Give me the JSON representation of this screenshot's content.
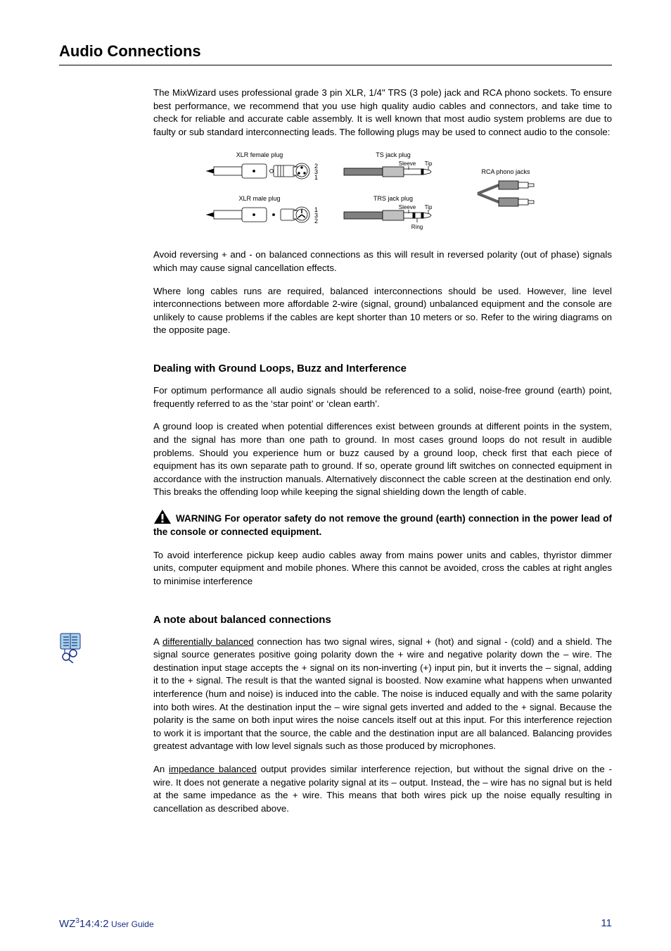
{
  "title": "Audio Connections",
  "intro": "The MixWizard uses professional grade 3 pin XLR, 1/4\" TRS (3 pole) jack and RCA phono sockets.  To ensure best performance, we recommend that you use high quality audio cables and connectors, and take time to check for reliable and accurate cable assembly.  It is well known that most audio system problems are due to faulty or sub standard interconnecting leads.  The following plugs may be used to connect audio to the console:",
  "diagram": {
    "labels": {
      "xlr_f": "XLR female plug",
      "xlr_m": "XLR male plug",
      "ts": "TS jack plug",
      "trs": "TRS jack plug",
      "rca": "RCA phono jacks",
      "sleeve": "Sleeve",
      "tip": "Tip",
      "ring": "Ring"
    },
    "colors": {
      "stroke": "#000000",
      "fill_cable": "#808080",
      "fill_body": "#b0b0b0",
      "fill_plug": "#d0d0d0",
      "text": "#000000"
    }
  },
  "para_avoid": "Avoid reversing + and - on balanced connections as this will result in reversed polarity (out of phase) signals which may cause signal cancellation effects.",
  "para_long": "Where long cables runs are required, balanced interconnections should be used.  However, line level interconnections between more affordable 2-wire (signal, ground) unbalanced equipment and the console are unlikely to cause problems if the cables are kept shorter than 10 meters or so.  Refer to the wiring diagrams on the opposite page.",
  "sub1": "Dealing with Ground Loops, Buzz and Interference",
  "para_opt": "For optimum performance all audio signals should be referenced to a solid, noise-free ground (earth) point, frequently referred to as the ‘star point’ or ‘clean earth’.",
  "para_loop": "A ground loop is created when potential differences exist between grounds at different points in the system, and the signal has more than one path to ground.  In most cases ground loops do not result in audible problems.  Should you experience hum or buzz caused by a ground loop, check first that each piece of equipment has its own separate path to ground.  If so, operate ground lift switches on connected equipment in accordance with the instruction manuals.  Alternatively disconnect the cable screen at the destination end only.  This breaks the offending loop while keeping the signal shielding down the length of cable.",
  "warning_label": "WARNING",
  "warning_text": "   For operator safety do not remove the ground (earth) connection in the power lead of the console or connected equipment.",
  "para_interf": "To avoid interference pickup keep audio cables away from mains power units and cables, thyristor dimmer units, computer equipment and mobile phones.  Where this cannot be avoided, cross the cables at right angles to minimise interference",
  "sub2": "A note about balanced connections",
  "para_diff_pre": "A ",
  "para_diff_u": "differentially balanced",
  "para_diff_post": " connection has two signal wires, signal + (hot) and signal - (cold) and a shield.  The signal source generates positive going polarity down the + wire and negative polarity down the – wire.  The destination input stage accepts the + signal on its non-inverting (+) input pin, but it inverts the – signal, adding it to the + signal.  The result is that the wanted signal is boosted.  Now examine what happens when unwanted interference (hum and noise) is induced into the cable.  The noise is induced equally and with the same polarity into both wires.  At the destination input the – wire signal gets inverted and added to the + signal.  Because the polarity is the same on both input wires the noise cancels itself out at this input.  For this interference rejection to work it is important that the source, the cable and the destination input are all balanced.  Balancing provides greatest advantage with low level signals such as those produced by microphones.",
  "para_imp_pre": "An ",
  "para_imp_u": "impedance balanced",
  "para_imp_post": " output provides similar interference rejection, but without the signal drive on the - wire.  It does not generate a negative polarity signal at its – output.  Instead, the – wire has no signal but is held at the same impedance as the + wire.  This means that both wires pick up the noise equally resulting in cancellation as described above.",
  "footer": {
    "model_pre": "WZ",
    "model_sup": "3",
    "model_post": "14:4:2",
    "guide": " User Guide",
    "page": "11",
    "color": "#1a2f8a"
  }
}
